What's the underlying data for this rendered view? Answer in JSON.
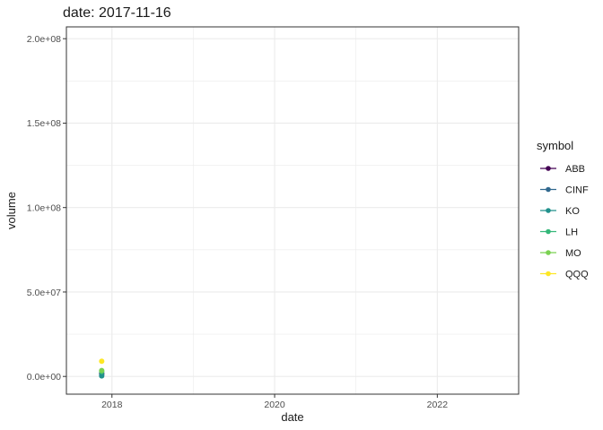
{
  "chart_data": {
    "type": "scatter",
    "title": "date: 2017-11-16",
    "xlabel": "date",
    "ylabel": "volume",
    "x_range": [
      "2017-06-11",
      "2023-01-01"
    ],
    "xlim": [
      2017.44,
      2023.0
    ],
    "x_ticks": [
      {
        "value": 2018,
        "label": "2018"
      },
      {
        "value": 2020,
        "label": "2020"
      },
      {
        "value": 2022,
        "label": "2022"
      }
    ],
    "ylim": [
      -10500000,
      207000000
    ],
    "y_ticks": [
      {
        "value": 0,
        "label": "0.0e+00"
      },
      {
        "value": 50000000,
        "label": "5.0e+07"
      },
      {
        "value": 100000000,
        "label": "1.0e+08"
      },
      {
        "value": 150000000,
        "label": "1.5e+08"
      },
      {
        "value": 200000000,
        "label": "2.0e+08"
      }
    ],
    "grid": true,
    "legend": {
      "title": "symbol",
      "position": "right"
    },
    "series": [
      {
        "name": "ABB",
        "color": "#440154",
        "points": [
          {
            "x": "2017-11-16",
            "y": 1800000
          }
        ]
      },
      {
        "name": "CINF",
        "color": "#31688e",
        "points": [
          {
            "x": "2017-11-16",
            "y": 1200000
          }
        ]
      },
      {
        "name": "KO",
        "color": "#21918c",
        "points": [
          {
            "x": "2017-11-16",
            "y": 300000
          }
        ]
      },
      {
        "name": "LH",
        "color": "#35b779",
        "points": [
          {
            "x": "2017-11-16",
            "y": 2800000
          }
        ]
      },
      {
        "name": "MO",
        "color": "#7ad151",
        "points": [
          {
            "x": "2017-11-16",
            "y": 3500000
          }
        ]
      },
      {
        "name": "QQQ",
        "color": "#fde725",
        "points": [
          {
            "x": "2017-11-16",
            "y": 9000000
          }
        ]
      }
    ]
  },
  "legend_labels": [
    "ABB",
    "CINF",
    "KO",
    "LH",
    "MO",
    "QQQ"
  ]
}
